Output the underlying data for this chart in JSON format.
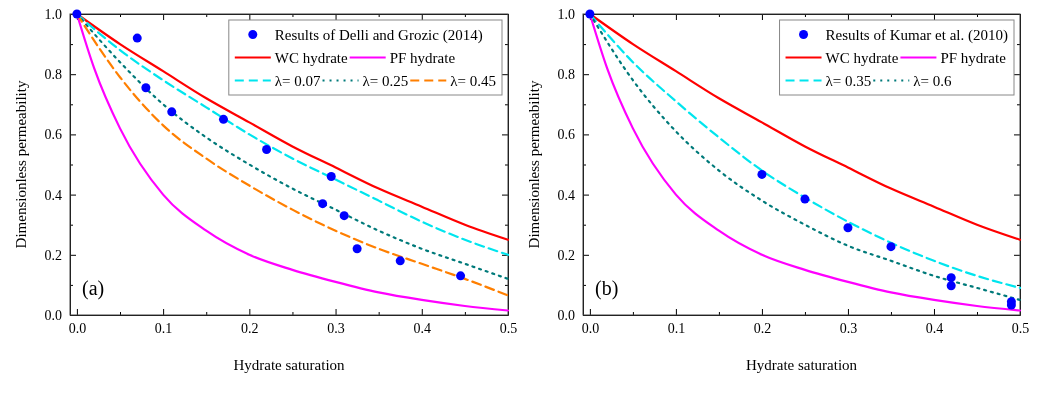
{
  "chart_data": [
    {
      "type": "line",
      "xlabel": "Hydrate saturation",
      "ylabel": "Dimensionless permeability",
      "annotations": [
        "(a)"
      ],
      "xlim": [
        -0.008,
        0.5
      ],
      "ylim": [
        0,
        1.0
      ],
      "xticks": [
        {
          "value": 0,
          "label": "0.0"
        },
        {
          "value": 0.05,
          "label": null
        },
        {
          "value": 0.1,
          "label": "0.1"
        },
        {
          "value": 0.15,
          "label": null
        },
        {
          "value": 0.2,
          "label": "0.2"
        },
        {
          "value": 0.25,
          "label": null
        },
        {
          "value": 0.3,
          "label": "0.3"
        },
        {
          "value": 0.35,
          "label": null
        },
        {
          "value": 0.4,
          "label": "0.4"
        },
        {
          "value": 0.45,
          "label": null
        },
        {
          "value": 0.5,
          "label": "0.5"
        }
      ],
      "yticks": [
        {
          "value": 0,
          "label": "0.0"
        },
        {
          "value": 0.1,
          "label": null
        },
        {
          "value": 0.2,
          "label": "0.2"
        },
        {
          "value": 0.3,
          "label": null
        },
        {
          "value": 0.4,
          "label": "0.4"
        },
        {
          "value": 0.5,
          "label": null
        },
        {
          "value": 0.6,
          "label": "0.6"
        },
        {
          "value": 0.7,
          "label": null
        },
        {
          "value": 0.8,
          "label": "0.8"
        },
        {
          "value": 0.9,
          "label": null
        },
        {
          "value": 1.0,
          "label": "1.0"
        }
      ],
      "legend": "top right",
      "grid": false,
      "series": [
        {
          "name": "Results of Delli and Grozic (2014)",
          "type": "scatter",
          "marker": "circle",
          "color": "#0000ff",
          "x": [
            0,
            0.07,
            0.08,
            0.11,
            0.17,
            0.22,
            0.295,
            0.285,
            0.31,
            0.325,
            0.375,
            0.445
          ],
          "values": [
            1.0,
            0.92,
            0.755,
            0.675,
            0.65,
            0.55,
            0.46,
            0.37,
            0.33,
            0.22,
            0.18,
            0.13
          ]
        },
        {
          "name": "WC hydrate",
          "color": "#ff0000",
          "line_style": "solid",
          "x": [
            0,
            0.05,
            0.1,
            0.15,
            0.2,
            0.25,
            0.3,
            0.35,
            0.4,
            0.45,
            0.5
          ],
          "values": [
            1.0,
            0.9,
            0.81,
            0.72,
            0.64,
            0.56,
            0.49,
            0.42,
            0.36,
            0.3,
            0.25
          ]
        },
        {
          "name": "PF hydrate",
          "color": "#ff00ff",
          "line_style": "solid",
          "x": [
            0,
            0.02,
            0.05,
            0.1,
            0.15,
            0.2,
            0.25,
            0.3,
            0.35,
            0.4,
            0.45,
            0.5
          ],
          "values": [
            1.0,
            0.82,
            0.62,
            0.4,
            0.28,
            0.2,
            0.15,
            0.11,
            0.075,
            0.05,
            0.03,
            0.015
          ]
        },
        {
          "name": "λ= 0.07",
          "color": "#00e5ee",
          "line_style": "dashed",
          "x": [
            0,
            0.05,
            0.1,
            0.15,
            0.2,
            0.25,
            0.3,
            0.35,
            0.4,
            0.45,
            0.5
          ],
          "values": [
            1.0,
            0.88,
            0.78,
            0.69,
            0.6,
            0.52,
            0.45,
            0.38,
            0.31,
            0.25,
            0.2
          ]
        },
        {
          "name": "λ= 0.25",
          "color": "#007a7a",
          "line_style": "dotted",
          "x": [
            0,
            0.05,
            0.1,
            0.15,
            0.2,
            0.25,
            0.3,
            0.35,
            0.4,
            0.45,
            0.5
          ],
          "values": [
            1.0,
            0.84,
            0.7,
            0.59,
            0.5,
            0.42,
            0.35,
            0.28,
            0.22,
            0.17,
            0.12
          ]
        },
        {
          "name": "λ= 0.45",
          "color": "#ff7f00",
          "line_style": "dashed",
          "x": [
            0,
            0.05,
            0.1,
            0.15,
            0.2,
            0.25,
            0.3,
            0.35,
            0.4,
            0.45,
            0.5
          ],
          "values": [
            1.0,
            0.79,
            0.63,
            0.52,
            0.43,
            0.35,
            0.28,
            0.22,
            0.17,
            0.12,
            0.065
          ]
        }
      ]
    },
    {
      "type": "line",
      "xlabel": "Hydrate saturation",
      "ylabel": "Dimensionless permeability",
      "annotations": [
        "(b)"
      ],
      "xlim": [
        -0.008,
        0.5
      ],
      "ylim": [
        0,
        1.0
      ],
      "xticks": [
        {
          "value": 0,
          "label": "0.0"
        },
        {
          "value": 0.05,
          "label": null
        },
        {
          "value": 0.1,
          "label": "0.1"
        },
        {
          "value": 0.15,
          "label": null
        },
        {
          "value": 0.2,
          "label": "0.2"
        },
        {
          "value": 0.25,
          "label": null
        },
        {
          "value": 0.3,
          "label": "0.3"
        },
        {
          "value": 0.35,
          "label": null
        },
        {
          "value": 0.4,
          "label": "0.4"
        },
        {
          "value": 0.45,
          "label": null
        },
        {
          "value": 0.5,
          "label": "0.5"
        }
      ],
      "yticks": [
        {
          "value": 0,
          "label": "0.0"
        },
        {
          "value": 0.1,
          "label": null
        },
        {
          "value": 0.2,
          "label": "0.2"
        },
        {
          "value": 0.3,
          "label": null
        },
        {
          "value": 0.4,
          "label": "0.4"
        },
        {
          "value": 0.5,
          "label": null
        },
        {
          "value": 0.6,
          "label": "0.6"
        },
        {
          "value": 0.7,
          "label": null
        },
        {
          "value": 0.8,
          "label": "0.8"
        },
        {
          "value": 0.9,
          "label": null
        },
        {
          "value": 1.0,
          "label": "1.0"
        }
      ],
      "legend": "top right",
      "grid": false,
      "series": [
        {
          "name": "Results of Kumar et al. (2010)",
          "type": "scatter",
          "marker": "circle",
          "color": "#0000ff",
          "x": [
            0,
            0.2,
            0.25,
            0.3,
            0.35,
            0.42,
            0.42,
            0.49,
            0.49
          ],
          "values": [
            1.0,
            0.467,
            0.385,
            0.29,
            0.227,
            0.124,
            0.097,
            0.044,
            0.033
          ]
        },
        {
          "name": "WC hydrate",
          "color": "#ff0000",
          "line_style": "solid",
          "x": [
            0,
            0.05,
            0.1,
            0.15,
            0.2,
            0.25,
            0.3,
            0.35,
            0.4,
            0.45,
            0.5
          ],
          "values": [
            1.0,
            0.9,
            0.81,
            0.72,
            0.64,
            0.56,
            0.49,
            0.42,
            0.36,
            0.3,
            0.25
          ]
        },
        {
          "name": "PF hydrate",
          "color": "#ff00ff",
          "line_style": "solid",
          "x": [
            0,
            0.02,
            0.05,
            0.1,
            0.15,
            0.2,
            0.25,
            0.3,
            0.35,
            0.4,
            0.45,
            0.5
          ],
          "values": [
            1.0,
            0.82,
            0.62,
            0.4,
            0.28,
            0.2,
            0.15,
            0.11,
            0.075,
            0.05,
            0.03,
            0.015
          ]
        },
        {
          "name": "λ= 0.35",
          "color": "#00e5ee",
          "line_style": "dashed",
          "x": [
            0,
            0.05,
            0.1,
            0.15,
            0.2,
            0.25,
            0.3,
            0.35,
            0.4,
            0.45,
            0.5
          ],
          "values": [
            1.0,
            0.84,
            0.71,
            0.59,
            0.48,
            0.39,
            0.31,
            0.24,
            0.18,
            0.13,
            0.09
          ]
        },
        {
          "name": "λ= 0.6",
          "color": "#007a7a",
          "line_style": "dotted",
          "x": [
            0,
            0.05,
            0.1,
            0.15,
            0.2,
            0.25,
            0.3,
            0.35,
            0.4,
            0.45,
            0.5
          ],
          "values": [
            1.0,
            0.78,
            0.61,
            0.48,
            0.38,
            0.3,
            0.23,
            0.18,
            0.13,
            0.09,
            0.05
          ]
        }
      ]
    }
  ]
}
